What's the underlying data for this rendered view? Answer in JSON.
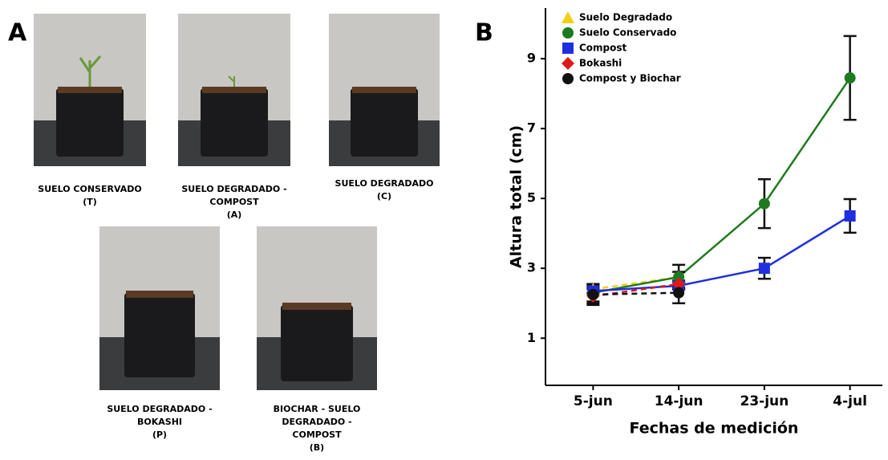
{
  "panel_labels": [
    "A",
    "B"
  ],
  "photos": [
    {
      "caption": [
        "SUELO CONSERVADO",
        "(T)"
      ]
    },
    {
      "caption": [
        "SUELO DEGRADADO -",
        "COMPOST",
        "(A)"
      ]
    },
    {
      "caption": [
        "SUELO DEGRADADO",
        "(C)"
      ]
    },
    {
      "caption": [
        "SUELO DEGRADADO -",
        "BOKASHI",
        "(P)"
      ]
    },
    {
      "caption": [
        "BIOCHAR - SUELO",
        "DEGRADADO -",
        "COMPOST",
        "(B)"
      ]
    }
  ],
  "chart_data": {
    "type": "line",
    "x_label": "Fechas de medición",
    "y_label": "Altura total (cm)",
    "categories": [
      "5-jun",
      "14-jun",
      "23-jun",
      "4-jul"
    ],
    "ylim": [
      -0.35,
      10.45
    ],
    "yticks": [
      1,
      3,
      5,
      7,
      9
    ],
    "grid": false,
    "legend": "upper-left",
    "series": [
      {
        "name": "Suelo Degradado",
        "color": "#f2d016",
        "marker": "triangle",
        "linestyle": "dashed",
        "values": [
          2.4,
          2.75,
          null,
          null
        ],
        "errors": [
          0.1,
          0.15,
          null,
          null
        ]
      },
      {
        "name": "Suelo Conservado",
        "color": "#1e7a1e",
        "marker": "circle",
        "linestyle": "solid",
        "values": [
          2.3,
          2.75,
          4.85,
          8.45
        ],
        "errors": [
          0.25,
          0.35,
          0.7,
          1.2
        ]
      },
      {
        "name": "Compost",
        "color": "#1f2fe0",
        "marker": "square",
        "linestyle": "solid",
        "values": [
          2.35,
          2.5,
          3.0,
          4.5
        ],
        "errors": [
          0.1,
          0.1,
          0.3,
          0.48
        ]
      },
      {
        "name": "Bokashi",
        "color": "#e01818",
        "marker": "diamond",
        "linestyle": "dashed",
        "values": [
          2.2,
          2.55,
          null,
          null
        ],
        "errors": [
          0.2,
          0.1,
          null,
          null
        ]
      },
      {
        "name": "Compost y Biochar",
        "color": "#111111",
        "marker": "circle",
        "linestyle": "dashed",
        "values": [
          2.25,
          2.3,
          null,
          null
        ],
        "errors": [
          0.3,
          0.3,
          null,
          null
        ]
      }
    ]
  }
}
